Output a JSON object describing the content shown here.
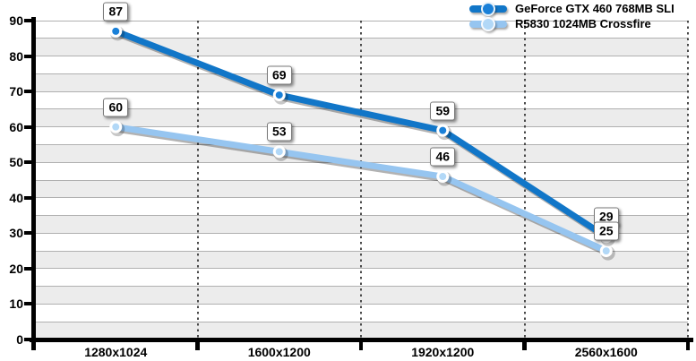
{
  "chart_data": {
    "type": "line",
    "title": "",
    "xlabel": "",
    "ylabel": "",
    "categories": [
      "1280x1024",
      "1600x1200",
      "1920x1200",
      "2560x1600"
    ],
    "series": [
      {
        "name": "GeForce GTX 460 768MB SLI",
        "values": [
          87,
          69,
          59,
          29
        ],
        "color": "#1176c8",
        "marker_fill": "#1a80d8"
      },
      {
        "name": "R5830 1024MB Crossfire",
        "values": [
          60,
          53,
          46,
          25
        ],
        "color": "#96c5f0",
        "marker_fill": "#b2d8f7"
      }
    ],
    "show_value_labels": true,
    "y_axis": {
      "min": 0,
      "max": 90,
      "tick_step": 10,
      "ticks": [
        0,
        10,
        20,
        30,
        40,
        50,
        60,
        70,
        80,
        90
      ],
      "minor_gridline_step": 5
    },
    "ylim": [
      0,
      90
    ],
    "grid": true,
    "legend_position": "top-right",
    "style": {
      "band_fill": "#ececec",
      "gridline_color": "#b0b0b0",
      "dotted_line_color": "#4a4a4a",
      "axis_color": "#000000",
      "label_box_bg": "#ffffff",
      "label_box_border": "#7a7a7a",
      "marker_ring": "#ffffff"
    }
  }
}
